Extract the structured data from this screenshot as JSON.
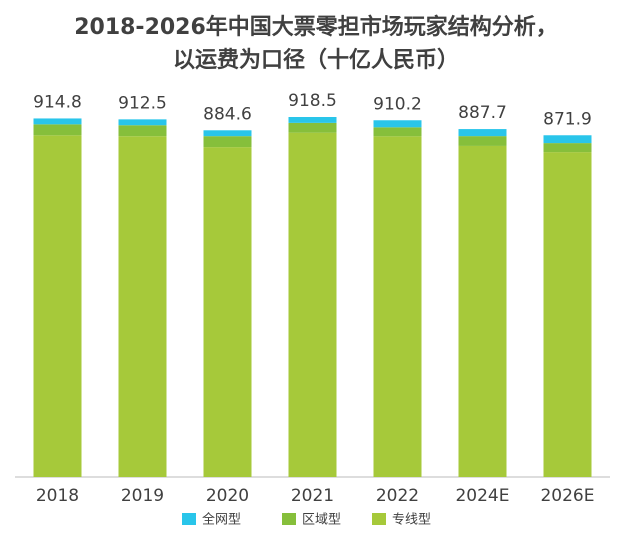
{
  "chart_data": {
    "type": "stacked_bar",
    "title": "2018-2026年中国大票零担市场玩家结构分析，",
    "subtitle": "以运费为口径（十亿人民币）",
    "categories": [
      "2018",
      "2019",
      "2020",
      "2021",
      "2022",
      "2024E",
      "2026E"
    ],
    "series": [
      {
        "name": "全网型",
        "color": "#29c5ea",
        "values": [
          15,
          15,
          15,
          15,
          18,
          18,
          20
        ]
      },
      {
        "name": "区域型",
        "color": "#86bf3b",
        "values": [
          28,
          28,
          28,
          25,
          23,
          25,
          23
        ]
      },
      {
        "name": "专线型",
        "color": "#a6c93a",
        "values": [
          871.8,
          869.5,
          841.6,
          878.5,
          869.2,
          844.7,
          828.9
        ]
      }
    ],
    "totals": [
      914.8,
      912.5,
      884.6,
      918.5,
      910.2,
      887.7,
      871.9
    ]
  }
}
